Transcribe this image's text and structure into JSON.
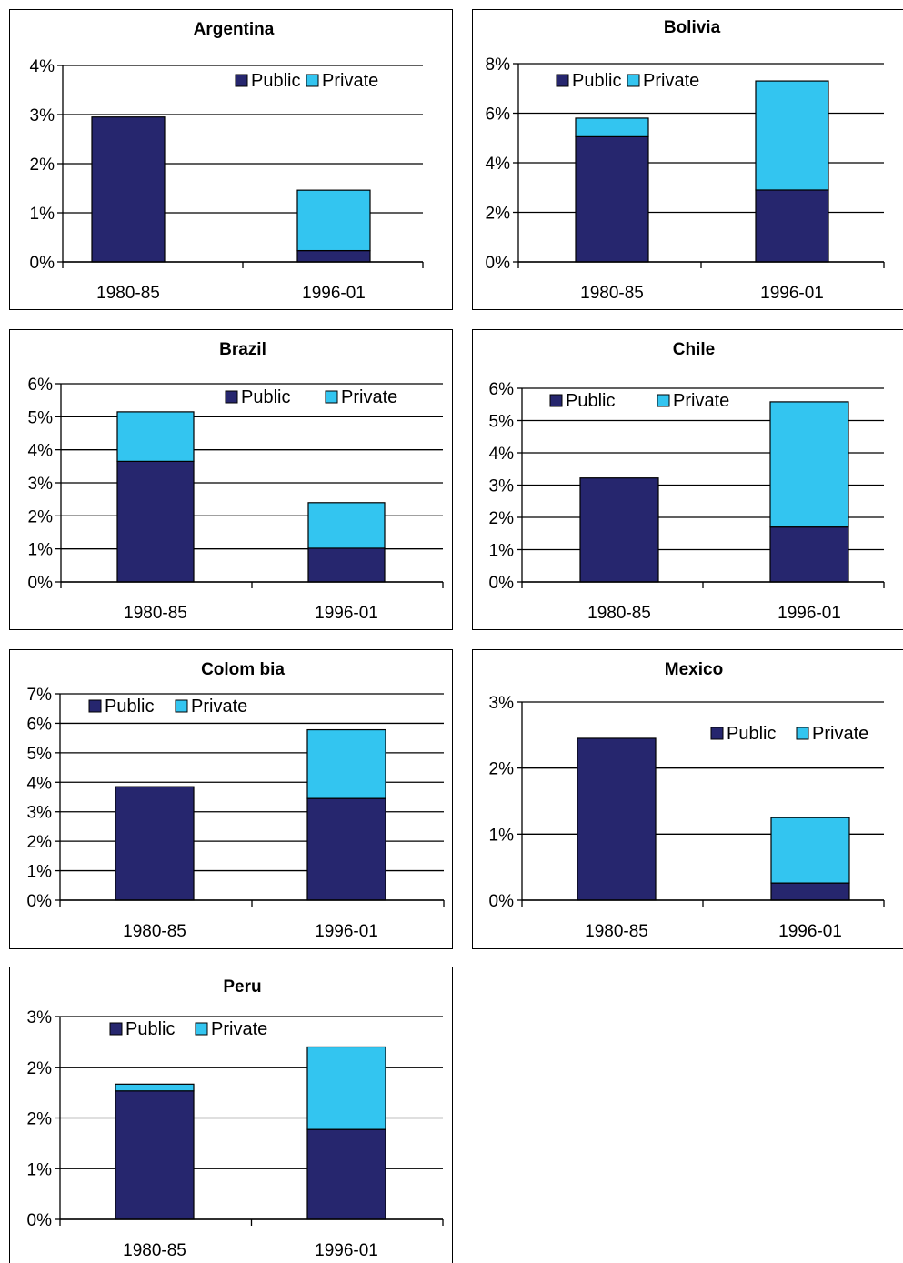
{
  "colors": {
    "public": "#26266e",
    "private": "#33c5f0"
  },
  "chart_data": [
    {
      "type": "bar",
      "title": "Argentina",
      "categories": [
        "1980-85",
        "1996-01"
      ],
      "series": [
        {
          "name": "Public",
          "values": [
            2.95,
            0.23
          ]
        },
        {
          "name": "Private",
          "values": [
            0.0,
            1.23
          ]
        }
      ],
      "ylim": [
        0,
        4
      ],
      "ytick_labels": [
        "0%",
        "1%",
        "2%",
        "3%",
        "4%"
      ],
      "grid": true,
      "legend": "top-right"
    },
    {
      "type": "bar",
      "title": "Bolivia",
      "categories": [
        "1980-85",
        "1996-01"
      ],
      "series": [
        {
          "name": "Public",
          "values": [
            5.05,
            2.9
          ]
        },
        {
          "name": "Private",
          "values": [
            0.75,
            4.4
          ]
        }
      ],
      "ylim": [
        0,
        8
      ],
      "ytick_labels": [
        "0%",
        "2%",
        "4%",
        "6%",
        "8%"
      ],
      "grid": true,
      "legend": "top-left"
    },
    {
      "type": "bar",
      "title": "Brazil",
      "categories": [
        "1980-85",
        "1996-01"
      ],
      "series": [
        {
          "name": "Public",
          "values": [
            3.65,
            1.02
          ]
        },
        {
          "name": "Private",
          "values": [
            1.5,
            1.38
          ]
        }
      ],
      "ylim": [
        0,
        6
      ],
      "ytick_labels": [
        "0%",
        "1%",
        "2%",
        "3%",
        "4%",
        "5%",
        "6%"
      ],
      "grid": true,
      "legend": "top-right"
    },
    {
      "type": "bar",
      "title": "Chile",
      "categories": [
        "1980-85",
        "1996-01"
      ],
      "series": [
        {
          "name": "Public",
          "values": [
            3.22,
            1.7
          ]
        },
        {
          "name": "Private",
          "values": [
            0.0,
            3.88
          ]
        }
      ],
      "ylim": [
        0,
        6
      ],
      "ytick_labels": [
        "0%",
        "1%",
        "2%",
        "3%",
        "4%",
        "5%",
        "6%"
      ],
      "grid": true,
      "legend": "top-left"
    },
    {
      "type": "bar",
      "title": "Colom bia",
      "categories": [
        "1980-85",
        "1996-01"
      ],
      "series": [
        {
          "name": "Public",
          "values": [
            3.85,
            3.45
          ]
        },
        {
          "name": "Private",
          "values": [
            0.0,
            2.33
          ]
        }
      ],
      "ylim": [
        0,
        7
      ],
      "ytick_labels": [
        "0%",
        "1%",
        "2%",
        "3%",
        "4%",
        "5%",
        "6%",
        "7%"
      ],
      "grid": true,
      "legend": "top-left"
    },
    {
      "type": "bar",
      "title": "Mexico",
      "categories": [
        "1980-85",
        "1996-01"
      ],
      "series": [
        {
          "name": "Public",
          "values": [
            2.45,
            0.26
          ]
        },
        {
          "name": "Private",
          "values": [
            0.0,
            0.99
          ]
        }
      ],
      "ylim": [
        0,
        3
      ],
      "ytick_labels": [
        "0%",
        "1%",
        "2%",
        "3%"
      ],
      "grid": true,
      "legend": "top-right"
    },
    {
      "type": "bar",
      "title": "Peru",
      "categories": [
        "1980-85",
        "1996-01"
      ],
      "series": [
        {
          "name": "Public",
          "values": [
            1.9,
            1.33
          ]
        },
        {
          "name": "Private",
          "values": [
            0.1,
            1.22
          ]
        }
      ],
      "ylim": [
        0,
        3
      ],
      "ytick_labels": [
        "0%",
        "1%",
        "2%",
        "2%",
        "3%"
      ],
      "grid": true,
      "legend": "top-left"
    }
  ]
}
